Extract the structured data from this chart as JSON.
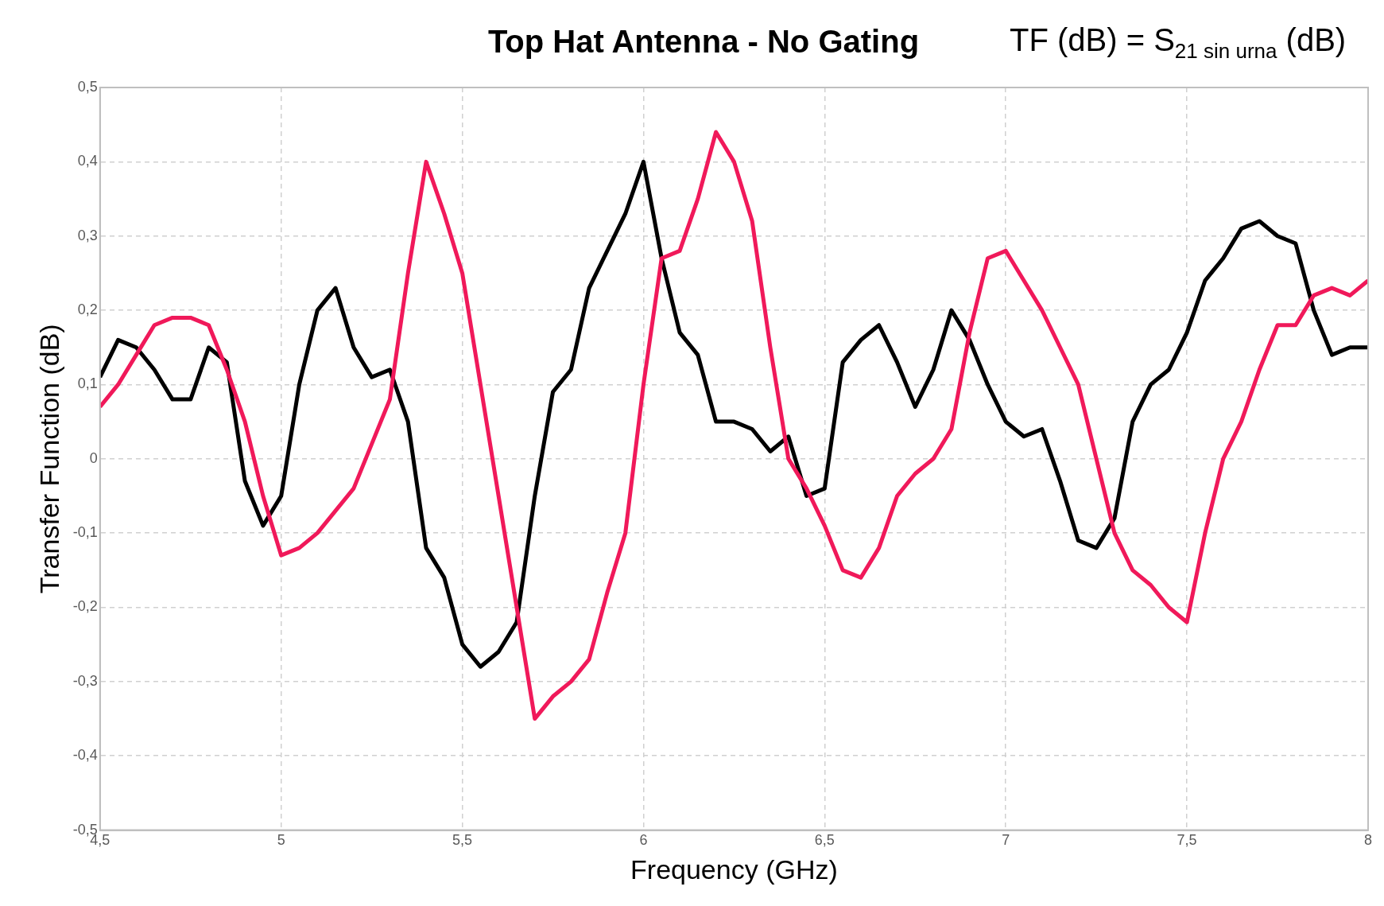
{
  "chart_data": {
    "type": "line",
    "title": "Top Hat Antenna - No Gating",
    "annotations": [
      "TF (dB) = S$_{21 sin urna}$ (dB)"
    ],
    "xlabel": "Frequency (GHz)",
    "ylabel": "Transfer Function (dB)",
    "x": [
      4.5,
      4.55,
      4.6,
      4.65,
      4.7,
      4.75,
      4.8,
      4.85,
      4.9,
      4.95,
      5.0,
      5.05,
      5.1,
      5.15,
      5.2,
      5.25,
      5.3,
      5.35,
      5.4,
      5.45,
      5.5,
      5.55,
      5.6,
      5.65,
      5.7,
      5.75,
      5.8,
      5.85,
      5.9,
      5.95,
      6.0,
      6.05,
      6.1,
      6.15,
      6.2,
      6.25,
      6.3,
      6.35,
      6.4,
      6.45,
      6.5,
      6.55,
      6.6,
      6.65,
      6.7,
      6.75,
      6.8,
      6.85,
      6.9,
      6.95,
      7.0,
      7.05,
      7.1,
      7.15,
      7.2,
      7.25,
      7.3,
      7.35,
      7.4,
      7.45,
      7.5,
      7.55,
      7.6,
      7.65,
      7.7,
      7.75,
      7.8,
      7.85,
      7.9,
      7.95,
      8.0
    ],
    "series": [
      {
        "color": "#f0195a",
        "values": [
          0.07,
          0.1,
          0.14,
          0.18,
          0.19,
          0.19,
          0.18,
          0.12,
          0.05,
          -0.05,
          -0.13,
          -0.12,
          -0.1,
          -0.07,
          -0.04,
          0.02,
          0.08,
          0.25,
          0.4,
          0.33,
          0.25,
          0.1,
          -0.05,
          -0.2,
          -0.35,
          -0.32,
          -0.3,
          -0.27,
          -0.18,
          -0.1,
          0.1,
          0.27,
          0.28,
          0.35,
          0.44,
          0.4,
          0.32,
          0.15,
          0.0,
          -0.04,
          -0.09,
          -0.15,
          -0.16,
          -0.12,
          -0.05,
          -0.02,
          0.0,
          0.04,
          0.17,
          0.27,
          0.28,
          0.24,
          0.2,
          0.15,
          0.1,
          0.0,
          -0.1,
          -0.15,
          -0.17,
          -0.2,
          -0.22,
          -0.1,
          0.0,
          0.05,
          0.12,
          0.18,
          0.18,
          0.22,
          0.23,
          0.22,
          0.24
        ]
      },
      {
        "color": "#000000",
        "values": [
          0.11,
          0.16,
          0.15,
          0.12,
          0.08,
          0.08,
          0.15,
          0.13,
          -0.03,
          -0.09,
          -0.05,
          0.1,
          0.2,
          0.23,
          0.15,
          0.11,
          0.12,
          0.05,
          -0.12,
          -0.16,
          -0.25,
          -0.28,
          -0.26,
          -0.22,
          -0.05,
          0.09,
          0.12,
          0.23,
          0.28,
          0.33,
          0.4,
          0.27,
          0.17,
          0.14,
          0.05,
          0.05,
          0.04,
          0.01,
          0.03,
          -0.05,
          -0.04,
          0.13,
          0.16,
          0.18,
          0.13,
          0.07,
          0.12,
          0.2,
          0.16,
          0.1,
          0.05,
          0.03,
          0.04,
          -0.03,
          -0.11,
          -0.12,
          -0.08,
          0.05,
          0.1,
          0.12,
          0.17,
          0.24,
          0.27,
          0.31,
          0.32,
          0.3,
          0.29,
          0.2,
          0.14,
          0.15,
          0.15
        ]
      }
    ],
    "xlim": [
      4.5,
      8
    ],
    "xticks": [
      {
        "value": 4.5,
        "label": "4,5"
      },
      5,
      {
        "value": 5.5,
        "label": "5,5"
      },
      6,
      {
        "value": 6.5,
        "label": "6,5"
      },
      7,
      {
        "value": 7.5,
        "label": "7,5"
      },
      8
    ],
    "ylim": [
      -0.5,
      0.5
    ],
    "yticks": [
      {
        "value": -0.5,
        "label": "-0,5"
      },
      {
        "value": -0.4,
        "label": "-0,4"
      },
      {
        "value": -0.3,
        "label": "-0,3"
      },
      {
        "value": -0.2,
        "label": "-0,2"
      },
      {
        "value": -0.1,
        "label": "-0,1"
      },
      0,
      {
        "value": 0.1,
        "label": "0,1"
      },
      {
        "value": 0.2,
        "label": "0,2"
      },
      {
        "value": 0.3,
        "label": "0,3"
      },
      {
        "value": 0.4,
        "label": "0,4"
      },
      {
        "value": 0.5,
        "label": "0,5"
      }
    ],
    "grid": true,
    "legend": false,
    "marker": "none",
    "line_style": "solid"
  }
}
